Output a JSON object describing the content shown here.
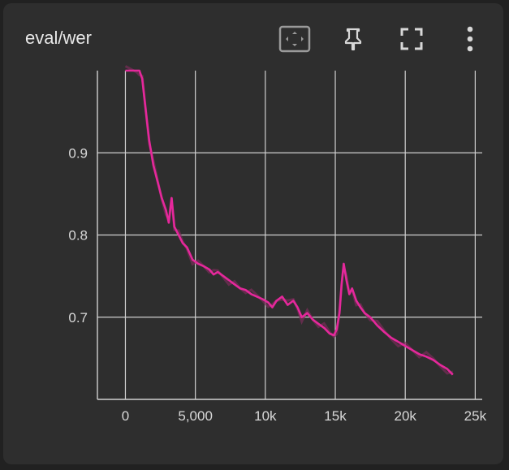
{
  "card": {
    "title": "eval/wer"
  },
  "toolbar": [
    {
      "name": "fit-domain-icon"
    },
    {
      "name": "pin-icon"
    },
    {
      "name": "fullscreen-icon"
    },
    {
      "name": "more-vert-icon"
    }
  ],
  "colors": {
    "series": "#e5289b",
    "series_raw": "#7a2e5a",
    "grid": "#d0d0d0",
    "background": "#2e2e2e"
  },
  "chart_data": {
    "type": "line",
    "title": "eval/wer",
    "xlabel": "",
    "ylabel": "",
    "xlim": [
      -2000,
      25500
    ],
    "ylim": [
      0.6,
      1.0
    ],
    "x_ticks": [
      {
        "value": 0,
        "label": "0"
      },
      {
        "value": 5000,
        "label": "5,000"
      },
      {
        "value": 10000,
        "label": "10k"
      },
      {
        "value": 15000,
        "label": "15k"
      },
      {
        "value": 20000,
        "label": "20k"
      },
      {
        "value": 25000,
        "label": "25k"
      }
    ],
    "y_ticks": [
      {
        "value": 0.7,
        "label": "0.7"
      },
      {
        "value": 0.8,
        "label": "0.8"
      },
      {
        "value": 0.9,
        "label": "0.9"
      }
    ],
    "grid": true,
    "series": [
      {
        "x": [
          0,
          400,
          800,
          1000,
          1200,
          1500,
          1700,
          2000,
          2300,
          2600,
          2900,
          3100,
          3300,
          3500,
          3800,
          4100,
          4400,
          4800,
          5200,
          5600,
          6000,
          6300,
          6600,
          7000,
          7400,
          7800,
          8200,
          8600,
          9000,
          9400,
          9800,
          10200,
          10500,
          10800,
          11200,
          11600,
          12000,
          12300,
          12600,
          13000,
          13400,
          13800,
          14200,
          14600,
          14900,
          15100,
          15300,
          15450,
          15600,
          15800,
          16000,
          16200,
          16500,
          16800,
          17100,
          17500,
          18000,
          18500,
          19000,
          19500,
          20000,
          20500,
          21000,
          21500,
          22000,
          22500,
          23000,
          23400
        ],
        "y": [
          1.0,
          1.0,
          1.0,
          1.0,
          0.99,
          0.945,
          0.915,
          0.885,
          0.865,
          0.845,
          0.83,
          0.815,
          0.845,
          0.81,
          0.8,
          0.79,
          0.785,
          0.77,
          0.765,
          0.762,
          0.758,
          0.752,
          0.755,
          0.75,
          0.745,
          0.74,
          0.735,
          0.733,
          0.728,
          0.725,
          0.722,
          0.718,
          0.712,
          0.72,
          0.725,
          0.715,
          0.72,
          0.712,
          0.7,
          0.705,
          0.697,
          0.692,
          0.687,
          0.68,
          0.678,
          0.685,
          0.705,
          0.74,
          0.765,
          0.745,
          0.728,
          0.735,
          0.72,
          0.712,
          0.705,
          0.7,
          0.69,
          0.682,
          0.675,
          0.67,
          0.665,
          0.66,
          0.655,
          0.652,
          0.648,
          0.642,
          0.637,
          0.63
        ]
      }
    ]
  }
}
